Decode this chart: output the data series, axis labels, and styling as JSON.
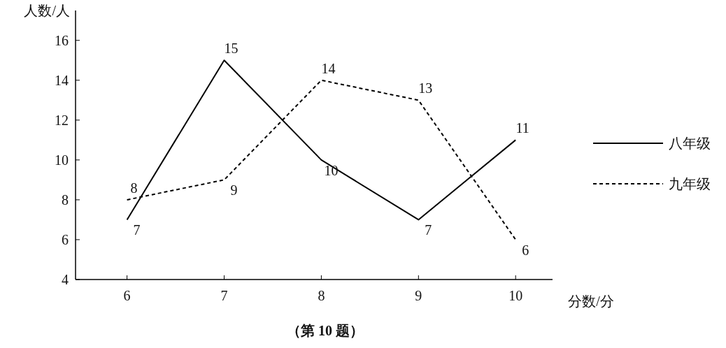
{
  "chart_data": {
    "type": "line",
    "xlabel": "分数/分",
    "ylabel": "人数/人",
    "x": [
      6,
      7,
      8,
      9,
      10
    ],
    "series": [
      {
        "name": "八年级",
        "color": "#000000",
        "line_style": "solid",
        "values": [
          7,
          15,
          10,
          7,
          11
        ]
      },
      {
        "name": "九年级",
        "color": "#000000",
        "line_style": "dashed",
        "values": [
          8,
          9,
          14,
          13,
          6
        ]
      }
    ],
    "xlim": [
      5.47,
      10.38
    ],
    "xticks": [
      6,
      7,
      8,
      9,
      10
    ],
    "ylim": [
      4,
      17.5
    ],
    "yticks": [
      4,
      6,
      8,
      10,
      12,
      14,
      16
    ],
    "data_labels": true,
    "legend": "right",
    "grid": false,
    "marker": "none",
    "annotations": [
      "（第 10 题）"
    ]
  }
}
